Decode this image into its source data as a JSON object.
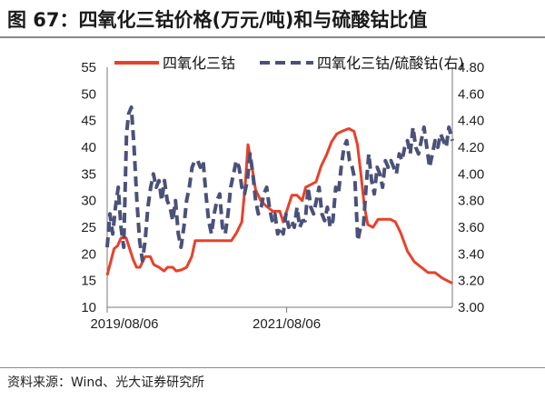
{
  "header": {
    "title": "图 67：四氧化三钴价格(万元/吨)和与硫酸钴比值"
  },
  "footer": {
    "source": "资料来源：Wind、光大证券研究所"
  },
  "chart_data": {
    "type": "line",
    "x_ticks": [
      "2019/08/06",
      "2021/08/06"
    ],
    "ylim_left": [
      10,
      55
    ],
    "yticks_left": [
      "55",
      "50",
      "45",
      "40",
      "35",
      "30",
      "25",
      "20",
      "15",
      "10"
    ],
    "ylim_right": [
      3.0,
      4.8
    ],
    "yticks_right": [
      "4.80",
      "4.60",
      "4.40",
      "4.20",
      "4.00",
      "3.80",
      "3.60",
      "3.40",
      "3.20",
      "3.00"
    ],
    "legend_position": "top",
    "series": [
      {
        "name": "四氧化三钴",
        "axis": "left",
        "color": "#e8412a",
        "style": "solid",
        "points": [
          [
            0.0,
            16.0
          ],
          [
            0.01,
            18.5
          ],
          [
            0.02,
            21.0
          ],
          [
            0.03,
            21.5
          ],
          [
            0.04,
            23.0
          ],
          [
            0.055,
            23.0
          ],
          [
            0.065,
            21.0
          ],
          [
            0.075,
            19.0
          ],
          [
            0.085,
            17.5
          ],
          [
            0.095,
            17.5
          ],
          [
            0.11,
            19.5
          ],
          [
            0.125,
            19.5
          ],
          [
            0.135,
            18.0
          ],
          [
            0.15,
            17.5
          ],
          [
            0.165,
            16.8
          ],
          [
            0.175,
            17.5
          ],
          [
            0.19,
            17.5
          ],
          [
            0.2,
            16.8
          ],
          [
            0.215,
            17.0
          ],
          [
            0.23,
            17.5
          ],
          [
            0.245,
            19.5
          ],
          [
            0.255,
            22.5
          ],
          [
            0.27,
            22.5
          ],
          [
            0.3,
            22.5
          ],
          [
            0.33,
            22.5
          ],
          [
            0.36,
            22.5
          ],
          [
            0.375,
            24.0
          ],
          [
            0.39,
            26.0
          ],
          [
            0.4,
            33.0
          ],
          [
            0.408,
            40.5
          ],
          [
            0.418,
            37.0
          ],
          [
            0.43,
            32.0
          ],
          [
            0.445,
            30.0
          ],
          [
            0.46,
            29.0
          ],
          [
            0.48,
            28.0
          ],
          [
            0.5,
            28.0
          ],
          [
            0.51,
            26.0
          ],
          [
            0.52,
            28.0
          ],
          [
            0.535,
            31.0
          ],
          [
            0.55,
            31.0
          ],
          [
            0.565,
            30.0
          ],
          [
            0.575,
            32.5
          ],
          [
            0.59,
            33.0
          ],
          [
            0.605,
            33.5
          ],
          [
            0.62,
            36.5
          ],
          [
            0.635,
            38.5
          ],
          [
            0.65,
            41.0
          ],
          [
            0.665,
            42.5
          ],
          [
            0.68,
            43.0
          ],
          [
            0.7,
            43.5
          ],
          [
            0.715,
            43.0
          ],
          [
            0.725,
            40.5
          ],
          [
            0.735,
            35.0
          ],
          [
            0.745,
            29.0
          ],
          [
            0.755,
            25.5
          ],
          [
            0.77,
            25.0
          ],
          [
            0.785,
            26.5
          ],
          [
            0.8,
            26.5
          ],
          [
            0.82,
            26.5
          ],
          [
            0.835,
            26.0
          ],
          [
            0.85,
            24.0
          ],
          [
            0.87,
            20.5
          ],
          [
            0.89,
            18.5
          ],
          [
            0.91,
            17.5
          ],
          [
            0.93,
            16.5
          ],
          [
            0.95,
            16.5
          ],
          [
            0.97,
            15.5
          ],
          [
            0.985,
            15.0
          ],
          [
            1.0,
            14.5
          ]
        ]
      },
      {
        "name": "四氧化三钴/硫酸钴(右)",
        "axis": "right",
        "color": "#4b5179",
        "style": "dashed",
        "points": [
          [
            0.0,
            3.45
          ],
          [
            0.008,
            3.7
          ],
          [
            0.016,
            3.55
          ],
          [
            0.024,
            3.75
          ],
          [
            0.032,
            3.9
          ],
          [
            0.04,
            3.6
          ],
          [
            0.048,
            3.45
          ],
          [
            0.056,
            4.3
          ],
          [
            0.062,
            4.45
          ],
          [
            0.07,
            4.5
          ],
          [
            0.078,
            4.2
          ],
          [
            0.086,
            3.8
          ],
          [
            0.094,
            3.5
          ],
          [
            0.102,
            3.35
          ],
          [
            0.11,
            3.5
          ],
          [
            0.118,
            3.75
          ],
          [
            0.126,
            3.9
          ],
          [
            0.134,
            4.0
          ],
          [
            0.142,
            3.9
          ],
          [
            0.15,
            3.95
          ],
          [
            0.158,
            3.8
          ],
          [
            0.166,
            3.95
          ],
          [
            0.174,
            3.8
          ],
          [
            0.182,
            3.75
          ],
          [
            0.19,
            3.65
          ],
          [
            0.198,
            3.8
          ],
          [
            0.206,
            3.55
          ],
          [
            0.214,
            3.45
          ],
          [
            0.222,
            3.6
          ],
          [
            0.23,
            3.8
          ],
          [
            0.238,
            3.9
          ],
          [
            0.246,
            4.05
          ],
          [
            0.254,
            4.1
          ],
          [
            0.262,
            4.1
          ],
          [
            0.27,
            4.05
          ],
          [
            0.278,
            4.1
          ],
          [
            0.286,
            3.85
          ],
          [
            0.294,
            3.65
          ],
          [
            0.302,
            3.55
          ],
          [
            0.31,
            3.7
          ],
          [
            0.318,
            3.8
          ],
          [
            0.326,
            3.85
          ],
          [
            0.334,
            3.6
          ],
          [
            0.342,
            3.55
          ],
          [
            0.35,
            3.7
          ],
          [
            0.358,
            3.9
          ],
          [
            0.366,
            4.0
          ],
          [
            0.374,
            4.1
          ],
          [
            0.382,
            4.05
          ],
          [
            0.39,
            3.9
          ],
          [
            0.398,
            3.85
          ],
          [
            0.406,
            3.95
          ],
          [
            0.414,
            4.15
          ],
          [
            0.422,
            4.0
          ],
          [
            0.43,
            3.8
          ],
          [
            0.438,
            3.7
          ],
          [
            0.446,
            3.75
          ],
          [
            0.454,
            3.85
          ],
          [
            0.462,
            3.9
          ],
          [
            0.47,
            3.75
          ],
          [
            0.478,
            3.65
          ],
          [
            0.486,
            3.7
          ],
          [
            0.494,
            3.55
          ],
          [
            0.502,
            3.6
          ],
          [
            0.51,
            3.55
          ],
          [
            0.518,
            3.7
          ],
          [
            0.526,
            3.6
          ],
          [
            0.534,
            3.65
          ],
          [
            0.542,
            3.6
          ],
          [
            0.55,
            3.75
          ],
          [
            0.558,
            3.6
          ],
          [
            0.566,
            3.65
          ],
          [
            0.574,
            3.65
          ],
          [
            0.582,
            3.9
          ],
          [
            0.59,
            3.75
          ],
          [
            0.598,
            3.7
          ],
          [
            0.606,
            3.8
          ],
          [
            0.614,
            3.9
          ],
          [
            0.622,
            3.7
          ],
          [
            0.63,
            3.65
          ],
          [
            0.638,
            3.75
          ],
          [
            0.646,
            3.6
          ],
          [
            0.654,
            3.65
          ],
          [
            0.662,
            3.9
          ],
          [
            0.67,
            3.85
          ],
          [
            0.678,
            4.05
          ],
          [
            0.686,
            4.2
          ],
          [
            0.694,
            4.25
          ],
          [
            0.702,
            4.1
          ],
          [
            0.71,
            4.05
          ],
          [
            0.718,
            3.95
          ],
          [
            0.726,
            3.5
          ],
          [
            0.734,
            3.6
          ],
          [
            0.742,
            3.6
          ],
          [
            0.75,
            3.9
          ],
          [
            0.758,
            4.15
          ],
          [
            0.766,
            3.95
          ],
          [
            0.774,
            3.85
          ],
          [
            0.782,
            4.05
          ],
          [
            0.79,
            4.0
          ],
          [
            0.798,
            3.9
          ],
          [
            0.806,
            4.1
          ],
          [
            0.814,
            4.05
          ],
          [
            0.822,
            4.1
          ],
          [
            0.83,
            4.05
          ],
          [
            0.838,
            4.0
          ],
          [
            0.846,
            4.15
          ],
          [
            0.854,
            4.1
          ],
          [
            0.862,
            4.2
          ],
          [
            0.87,
            4.25
          ],
          [
            0.878,
            4.15
          ],
          [
            0.886,
            4.35
          ],
          [
            0.894,
            4.2
          ],
          [
            0.902,
            4.15
          ],
          [
            0.91,
            4.25
          ],
          [
            0.918,
            4.35
          ],
          [
            0.926,
            4.2
          ],
          [
            0.934,
            4.05
          ],
          [
            0.942,
            4.15
          ],
          [
            0.95,
            4.25
          ],
          [
            0.958,
            4.2
          ],
          [
            0.966,
            4.3
          ],
          [
            0.974,
            4.25
          ],
          [
            0.982,
            4.2
          ],
          [
            0.99,
            4.35
          ],
          [
            1.0,
            4.25
          ]
        ]
      }
    ]
  },
  "colors": {
    "accent_red": "#e8412a",
    "accent_navy": "#4b5179"
  }
}
